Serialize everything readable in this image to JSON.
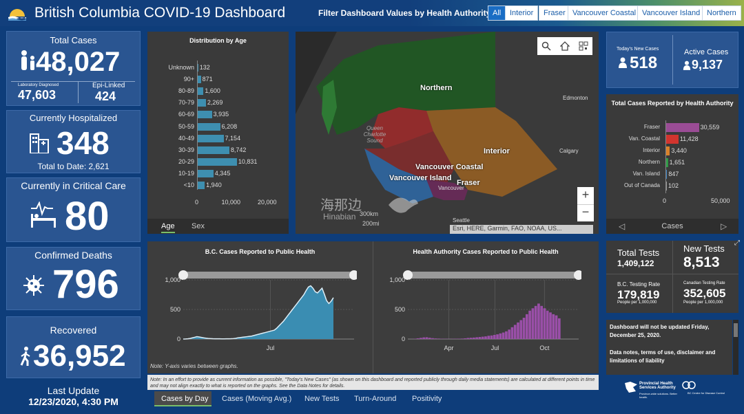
{
  "header": {
    "title": "British Columbia COVID-19 Dashboard",
    "filter_label": "Filter Dashboard Values by Health Authority:",
    "filters": [
      "All",
      "Interior",
      "Fraser",
      "Vancouver Coastal",
      "Vancouver Island",
      "Northern"
    ]
  },
  "total_cases": {
    "label": "Total Cases",
    "value": "48,027",
    "lab_label": "Laboratory Diagnosed",
    "lab_value": "47,603",
    "epi_label": "Epi-Linked",
    "epi_value": "424"
  },
  "hospitalized": {
    "label": "Currently Hospitalized",
    "value": "348",
    "total_text": "Total to Date: 2,621"
  },
  "critical": {
    "label": "Currently in Critical Care",
    "value": "80"
  },
  "deaths": {
    "label": "Confirmed Deaths",
    "value": "796"
  },
  "recovered": {
    "label": "Recovered",
    "value": "36,952"
  },
  "last_update": {
    "label": "Last Update",
    "value": "12/23/2020, 4:30 PM"
  },
  "age_panel": {
    "title": "Distribution by Age",
    "tabs": [
      "Age",
      "Sex"
    ],
    "chart_data": {
      "type": "bar",
      "orientation": "horizontal",
      "title": "Distribution by Age",
      "categories": [
        "Unknown",
        "90+",
        "80-89",
        "70-79",
        "60-69",
        "50-59",
        "40-49",
        "30-39",
        "20-29",
        "10-19",
        "<10"
      ],
      "values": [
        132,
        871,
        1600,
        2269,
        3935,
        6208,
        7154,
        8742,
        10831,
        4345,
        1940
      ],
      "labels": [
        "132",
        "871",
        "1,600",
        "2,269",
        "3,935",
        "6,208",
        "7,154",
        "8,742",
        "10,831",
        "4,345",
        "1,940"
      ],
      "xlim": [
        0,
        20000
      ],
      "ticks": [
        "0",
        "10,000",
        "20,000"
      ]
    }
  },
  "map": {
    "labels": {
      "northern": "Northern",
      "interior": "Interior",
      "vc": "Vancouver Coastal",
      "vi": "Vancouver Island",
      "fraser": "Fraser",
      "edmonton": "Edmonton",
      "calgary": "Calgary",
      "vancouver": "Vancouver",
      "seattle": "Seattle",
      "qcs": "Queen Charlotte Sound"
    },
    "scale1": "300km",
    "scale2": "200mi",
    "attribution": "Esri, HERE, Garmin, FAO, NOAA, US...",
    "wm1": "海那边",
    "wm2": "Hinabian",
    "zoom_in": "+",
    "zoom_out": "−"
  },
  "new_cases": {
    "label": "Today's New Cases",
    "value": "518"
  },
  "active": {
    "label": "Active Cases",
    "value": "9,137"
  },
  "ha_panel": {
    "title": "Total Cases Reported by Health Authority",
    "footer": "Cases",
    "chart_data": {
      "type": "bar",
      "orientation": "horizontal",
      "title": "Total Cases Reported by Health Authority",
      "categories": [
        "Fraser",
        "Van. Coastal",
        "Interior",
        "Northern",
        "Van. Island",
        "Out of Canada"
      ],
      "values": [
        30559,
        11428,
        3440,
        1651,
        847,
        102
      ],
      "labels": [
        "30,559",
        "11,428",
        "3,440",
        "1,651",
        "847",
        "102"
      ],
      "colors": [
        "#9a4c95",
        "#d2342e",
        "#d9812a",
        "#2f9a46",
        "#3e86c8",
        "#9a9a9a"
      ],
      "xlim": [
        0,
        50000
      ],
      "ticks": [
        "0",
        "50,000"
      ]
    }
  },
  "tests": {
    "total_label": "Total Tests",
    "total_value": "1,409,122",
    "new_label": "New Tests",
    "new_value": "8,513",
    "bc_rate_label": "B.C. Testing Rate",
    "bc_rate_value": "179,819",
    "bc_rate_sub": "People per 1,000,000",
    "ca_rate_label": "Canadian Testing Rate",
    "ca_rate_value": "352,605",
    "ca_rate_sub": "People per 1,000,000"
  },
  "notice": {
    "line1": "Dashboard will not be updated Friday, December 25, 2020.",
    "line2": "Data notes, terms of use, disclaimer and limitations of liability"
  },
  "chart1": {
    "title": "B.C. Cases Reported to Public Health",
    "note": "Note: Y-axis varies between graphs.",
    "chart_data": {
      "type": "area",
      "title": "B.C. Cases Reported to Public Health",
      "yticks": [
        "1,000",
        "500",
        "0"
      ],
      "xticks": [
        "Jul"
      ],
      "ylim": [
        0,
        1000
      ],
      "values": [
        0,
        2,
        5,
        10,
        20,
        30,
        40,
        35,
        28,
        20,
        15,
        10,
        8,
        6,
        5,
        4,
        4,
        3,
        3,
        4,
        5,
        6,
        8,
        12,
        20,
        25,
        30,
        35,
        40,
        45,
        50,
        60,
        70,
        80,
        90,
        100,
        110,
        120,
        130,
        140,
        150,
        180,
        220,
        260,
        300,
        350,
        400,
        450,
        500,
        550,
        600,
        650,
        700,
        750,
        820,
        880,
        900,
        860,
        800,
        780,
        820,
        860,
        760,
        650,
        600,
        640,
        700
      ]
    }
  },
  "chart2": {
    "title": "Health Authority Cases Reported to Public Health",
    "chart_data": {
      "type": "bar",
      "title": "Health Authority Cases Reported to Public Health",
      "yticks": [
        "1,000",
        "500",
        "0"
      ],
      "xticks": [
        "Apr",
        "Jul",
        "Oct"
      ],
      "ylim": [
        0,
        1000
      ],
      "values": [
        0,
        2,
        5,
        12,
        20,
        28,
        30,
        22,
        15,
        10,
        8,
        5,
        4,
        4,
        3,
        4,
        5,
        6,
        8,
        12,
        18,
        22,
        25,
        30,
        35,
        40,
        45,
        55,
        60,
        70,
        80,
        95,
        110,
        130,
        160,
        200,
        240,
        280,
        320,
        360,
        420,
        480,
        520,
        560,
        600,
        560,
        520,
        480,
        450,
        420,
        400,
        350
      ]
    }
  },
  "bottom_note": "Note: In an effort to provide as current information as possible, \"Today's New Cases\" (as shown on this dashboard and reported publicly through daily media statements) are calculated at different points in time and may not align exactly to what is reported on the graphs. See the Data Notes for details.",
  "bottom_tabs": [
    "Cases by Day",
    "Cases (Moving Avg.)",
    "New Tests",
    "Turn-Around",
    "Positivity"
  ],
  "logos": {
    "phsa": "Provincial Health Services Authority",
    "phsa_sub": "Province-wide solutions. Better health.",
    "bccdc": "BC Centre for Disease Control"
  }
}
